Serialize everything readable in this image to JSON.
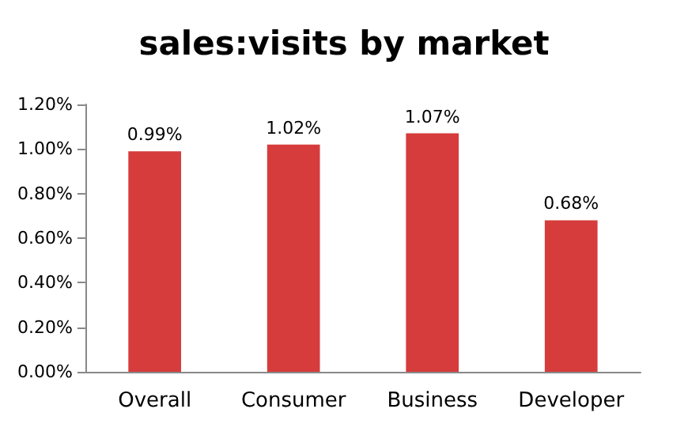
{
  "chart_data": {
    "type": "bar",
    "title": "sales:visits by market",
    "categories": [
      "Overall",
      "Consumer",
      "Business",
      "Developer"
    ],
    "values": [
      0.99,
      1.02,
      1.07,
      0.68
    ],
    "value_labels": [
      "0.99%",
      "1.02%",
      "1.07%",
      "0.68%"
    ],
    "color": "#d63c3c",
    "ylim": [
      0,
      1.2
    ],
    "yticks": [
      {
        "value": 0,
        "label": "0.00%"
      },
      {
        "value": 0.2,
        "label": "0.20%"
      },
      {
        "value": 0.4,
        "label": "0.40%"
      },
      {
        "value": 0.6,
        "label": "0.60%"
      },
      {
        "value": 0.8,
        "label": "0.80%"
      },
      {
        "value": 1.0,
        "label": "1.00%"
      },
      {
        "value": 1.2,
        "label": "1.20%"
      }
    ],
    "grid": false
  }
}
